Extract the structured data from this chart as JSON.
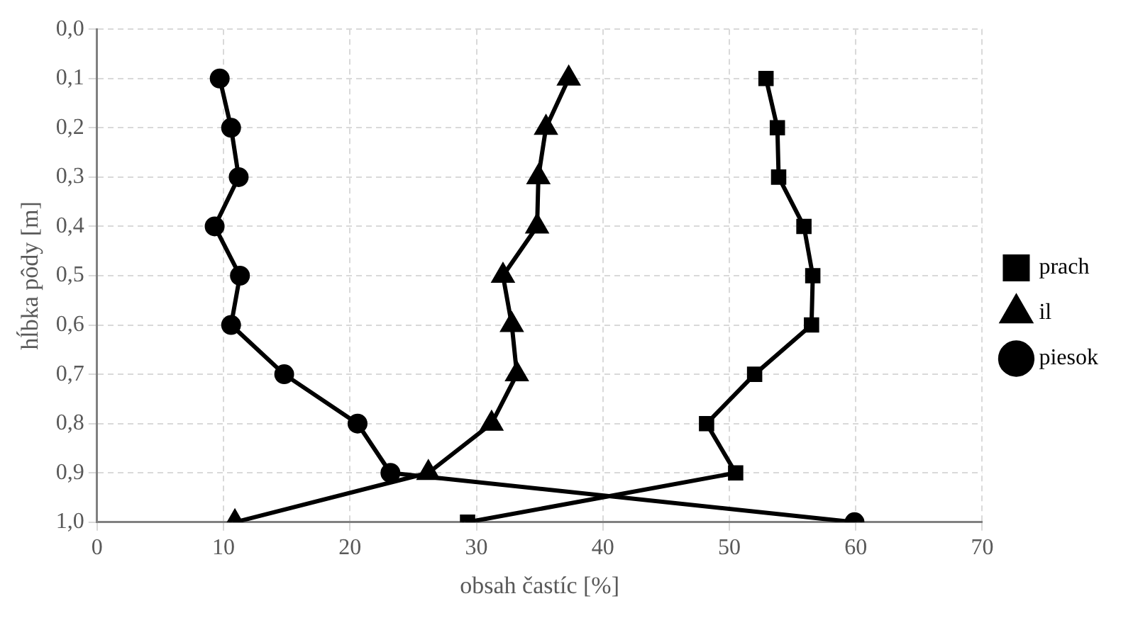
{
  "chart_data": {
    "type": "line",
    "xlabel": "obsah častíc [%]",
    "ylabel": "hĺbka pôdy [m]",
    "xlim": [
      0,
      70
    ],
    "xticks": [
      0,
      10,
      20,
      30,
      40,
      50,
      60,
      70
    ],
    "ylim": [
      1,
      0
    ],
    "yticks": [
      {
        "value": 0,
        "label": "0,0"
      },
      {
        "value": 0.1,
        "label": "0,1"
      },
      {
        "value": 0.2,
        "label": "0,2"
      },
      {
        "value": 0.3,
        "label": "0,3"
      },
      {
        "value": 0.4,
        "label": "0,4"
      },
      {
        "value": 0.5,
        "label": "0,5"
      },
      {
        "value": 0.6,
        "label": "0,6"
      },
      {
        "value": 0.7,
        "label": "0,7"
      },
      {
        "value": 0.8,
        "label": "0,8"
      },
      {
        "value": 0.9,
        "label": "0,9"
      },
      {
        "value": 1,
        "label": "1,0"
      }
    ],
    "grid": true,
    "legend": "right",
    "line_style": "solid",
    "series": [
      {
        "name": "prach",
        "color": "#000000",
        "marker": "square",
        "x": [
          52.9,
          53.8,
          53.9,
          55.9,
          56.6,
          56.5,
          52.0,
          48.2,
          50.5,
          29.3
        ],
        "values": [
          0.1,
          0.2,
          0.3,
          0.4,
          0.5,
          0.6,
          0.7,
          0.8,
          0.9,
          1.0
        ]
      },
      {
        "name": "il",
        "color": "#000000",
        "marker": "triangle",
        "x": [
          37.3,
          35.5,
          34.9,
          34.8,
          32.1,
          32.8,
          33.2,
          31.2,
          26.2,
          10.9
        ],
        "values": [
          0.1,
          0.2,
          0.3,
          0.4,
          0.5,
          0.6,
          0.7,
          0.8,
          0.9,
          1.0
        ]
      },
      {
        "name": "piesok",
        "color": "#000000",
        "marker": "circle",
        "x": [
          9.7,
          10.6,
          11.2,
          9.3,
          11.3,
          10.6,
          14.8,
          20.6,
          23.2,
          59.9
        ],
        "values": [
          0.1,
          0.2,
          0.3,
          0.4,
          0.5,
          0.6,
          0.7,
          0.8,
          0.9,
          1.0
        ]
      }
    ]
  }
}
